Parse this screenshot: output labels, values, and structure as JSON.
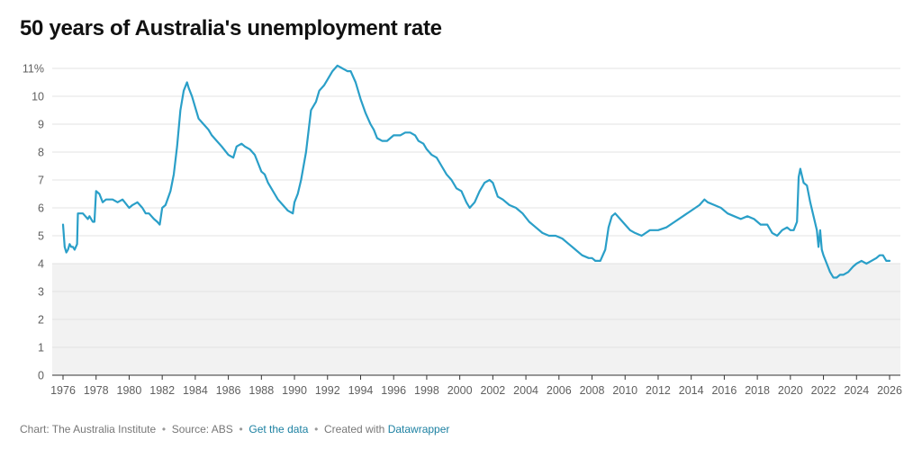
{
  "title": "50 years of Australia's unemployment rate",
  "footer": {
    "chart_credit": "Chart: The Australia Institute",
    "source": "Source: ABS",
    "get_data": "Get the data",
    "created_with": "Created with",
    "tool": "Datawrapper"
  },
  "colors": {
    "line": "#2a9fc8",
    "band": "#f2f2f2",
    "grid": "#e3e3e3",
    "axis": "#333333",
    "link": "#1d81a2"
  },
  "chart_data": {
    "type": "line",
    "title": "50 years of Australia's unemployment rate",
    "xlim": [
      1976,
      2026
    ],
    "ylim": [
      0,
      11
    ],
    "y_ticks": [
      {
        "value": 0,
        "label": "0"
      },
      {
        "value": 1,
        "label": "1"
      },
      {
        "value": 2,
        "label": "2"
      },
      {
        "value": 3,
        "label": "3"
      },
      {
        "value": 4,
        "label": "4"
      },
      {
        "value": 5,
        "label": "5"
      },
      {
        "value": 6,
        "label": "6"
      },
      {
        "value": 7,
        "label": "7"
      },
      {
        "value": 8,
        "label": "8"
      },
      {
        "value": 9,
        "label": "9"
      },
      {
        "value": 10,
        "label": "10"
      },
      {
        "value": 11,
        "label": "11%"
      }
    ],
    "x_ticks": [
      1976,
      1978,
      1980,
      1982,
      1984,
      1986,
      1988,
      1990,
      1992,
      1994,
      1996,
      1998,
      2000,
      2002,
      2004,
      2006,
      2008,
      2010,
      2012,
      2014,
      2016,
      2018,
      2020,
      2022,
      2024,
      2026
    ],
    "shaded_band": {
      "from": 0,
      "to": 4
    },
    "grid": true,
    "series": [
      {
        "x": [
          1976.0,
          1976.1,
          1976.2,
          1976.3,
          1976.4,
          1976.5,
          1976.6,
          1976.7,
          1976.85,
          1976.9,
          1977.2,
          1977.5,
          1977.6,
          1977.8,
          1977.9,
          1978.0,
          1978.2,
          1978.4,
          1978.6,
          1978.8,
          1979.0,
          1979.3,
          1979.6,
          1980.0,
          1980.2,
          1980.5,
          1980.8,
          1981.0,
          1981.2,
          1981.5,
          1981.7,
          1981.85,
          1982.0,
          1982.2,
          1982.5,
          1982.7,
          1982.9,
          1983.1,
          1983.3,
          1983.5,
          1983.6,
          1983.8,
          1984.0,
          1984.2,
          1984.5,
          1984.8,
          1985.0,
          1985.3,
          1985.6,
          1986.0,
          1986.3,
          1986.5,
          1986.8,
          1987.0,
          1987.3,
          1987.6,
          1987.8,
          1988.0,
          1988.2,
          1988.4,
          1988.6,
          1988.8,
          1989.0,
          1989.3,
          1989.6,
          1989.9,
          1990.0,
          1990.2,
          1990.4,
          1990.7,
          1991.0,
          1991.3,
          1991.5,
          1991.8,
          1992.0,
          1992.3,
          1992.6,
          1992.9,
          1993.2,
          1993.4,
          1993.7,
          1994.0,
          1994.3,
          1994.6,
          1994.8,
          1995.0,
          1995.3,
          1995.6,
          1996.0,
          1996.4,
          1996.7,
          1997.0,
          1997.3,
          1997.5,
          1997.8,
          1998.0,
          1998.3,
          1998.6,
          1998.9,
          1999.2,
          1999.5,
          1999.8,
          2000.1,
          2000.4,
          2000.6,
          2000.9,
          2001.2,
          2001.5,
          2001.8,
          2002.0,
          2002.3,
          2002.6,
          2003.0,
          2003.4,
          2003.8,
          2004.2,
          2004.6,
          2005.0,
          2005.4,
          2005.8,
          2006.2,
          2006.6,
          2007.0,
          2007.4,
          2007.8,
          2008.0,
          2008.2,
          2008.5,
          2008.8,
          2009.0,
          2009.2,
          2009.4,
          2009.7,
          2010.0,
          2010.3,
          2010.6,
          2011.0,
          2011.5,
          2012.0,
          2012.5,
          2013.0,
          2013.5,
          2014.0,
          2014.5,
          2014.8,
          2015.0,
          2015.4,
          2015.8,
          2016.2,
          2016.6,
          2017.0,
          2017.4,
          2017.8,
          2018.2,
          2018.6,
          2018.9,
          2019.2,
          2019.5,
          2019.8,
          2020.0,
          2020.2,
          2020.4,
          2020.5,
          2020.6,
          2020.8,
          2021.0,
          2021.2,
          2021.4,
          2021.6,
          2021.7,
          2021.8,
          2021.9,
          2022.0,
          2022.2,
          2022.4,
          2022.6,
          2022.8,
          2023.0,
          2023.2,
          2023.5,
          2023.8,
          2024.0,
          2024.3,
          2024.6,
          2024.9,
          2025.2,
          2025.4,
          2025.6,
          2025.8,
          2026.0
        ],
        "values": [
          5.4,
          4.6,
          4.4,
          4.5,
          4.7,
          4.6,
          4.6,
          4.5,
          4.7,
          5.8,
          5.8,
          5.6,
          5.7,
          5.5,
          5.5,
          6.6,
          6.5,
          6.2,
          6.3,
          6.3,
          6.3,
          6.2,
          6.3,
          6.0,
          6.1,
          6.2,
          6.0,
          5.8,
          5.8,
          5.6,
          5.5,
          5.4,
          6.0,
          6.1,
          6.6,
          7.2,
          8.2,
          9.5,
          10.2,
          10.5,
          10.3,
          10.0,
          9.6,
          9.2,
          9.0,
          8.8,
          8.6,
          8.4,
          8.2,
          7.9,
          7.8,
          8.2,
          8.3,
          8.2,
          8.1,
          7.9,
          7.6,
          7.3,
          7.2,
          6.9,
          6.7,
          6.5,
          6.3,
          6.1,
          5.9,
          5.8,
          6.2,
          6.5,
          7.0,
          8.0,
          9.5,
          9.8,
          10.2,
          10.4,
          10.6,
          10.9,
          11.1,
          11.0,
          10.9,
          10.9,
          10.5,
          9.9,
          9.4,
          9.0,
          8.8,
          8.5,
          8.4,
          8.4,
          8.6,
          8.6,
          8.7,
          8.7,
          8.6,
          8.4,
          8.3,
          8.1,
          7.9,
          7.8,
          7.5,
          7.2,
          7.0,
          6.7,
          6.6,
          6.2,
          6.0,
          6.2,
          6.6,
          6.9,
          7.0,
          6.9,
          6.4,
          6.3,
          6.1,
          6.0,
          5.8,
          5.5,
          5.3,
          5.1,
          5.0,
          5.0,
          4.9,
          4.7,
          4.5,
          4.3,
          4.2,
          4.2,
          4.1,
          4.1,
          4.5,
          5.3,
          5.7,
          5.8,
          5.6,
          5.4,
          5.2,
          5.1,
          5.0,
          5.2,
          5.2,
          5.3,
          5.5,
          5.7,
          5.9,
          6.1,
          6.3,
          6.2,
          6.1,
          6.0,
          5.8,
          5.7,
          5.6,
          5.7,
          5.6,
          5.4,
          5.4,
          5.1,
          5.0,
          5.2,
          5.3,
          5.2,
          5.2,
          5.5,
          7.1,
          7.4,
          6.9,
          6.8,
          6.2,
          5.7,
          5.2,
          4.6,
          5.2,
          4.5,
          4.3,
          4.0,
          3.7,
          3.5,
          3.5,
          3.6,
          3.6,
          3.7,
          3.9,
          4.0,
          4.1,
          4.0,
          4.1,
          4.2,
          4.3,
          4.3,
          4.1,
          4.1
        ]
      }
    ]
  }
}
